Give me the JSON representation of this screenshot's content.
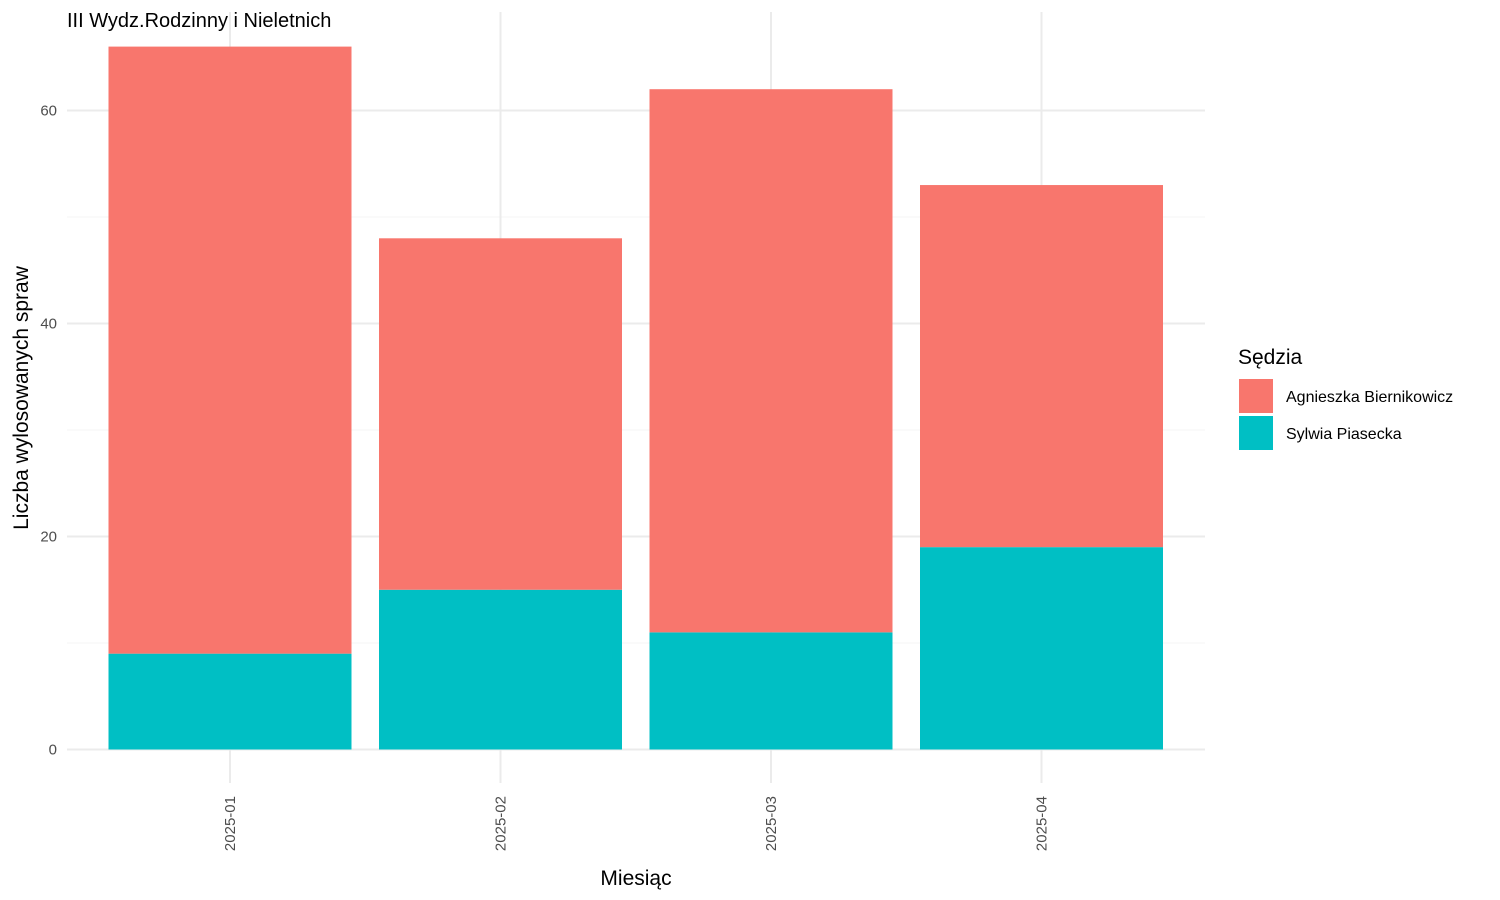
{
  "chart_data": {
    "type": "bar",
    "stacked": true,
    "title": "III Wydz.Rodzinny i Nieletnich",
    "xlabel": "Miesiąc",
    "ylabel": "Liczba wylosowanych spraw",
    "categories": [
      "2025-01",
      "2025-02",
      "2025-03",
      "2025-04"
    ],
    "series": [
      {
        "name": "Sylwia Piasecka",
        "color": "#00BFC4",
        "values": [
          9,
          15,
          11,
          19
        ]
      },
      {
        "name": "Agnieszka Biernikowicz",
        "color": "#F8766D",
        "values": [
          57,
          33,
          51,
          34
        ]
      }
    ],
    "ylim": [
      0,
      66
    ],
    "yticks": [
      0,
      20,
      40,
      60
    ],
    "grid": true,
    "legend": {
      "title": "Sędzia",
      "position": "right",
      "order": [
        "Agnieszka Biernikowicz",
        "Sylwia Piasecka"
      ]
    },
    "x_tick_rotation": "vertical"
  }
}
